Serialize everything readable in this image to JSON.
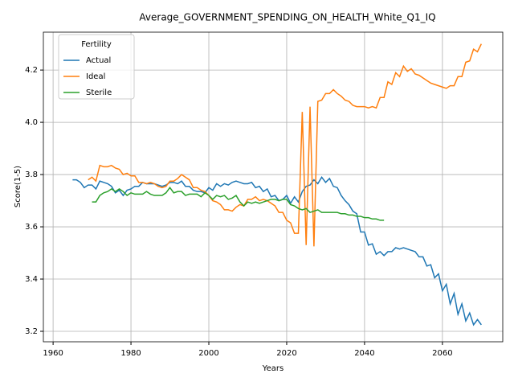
{
  "chart_data": {
    "type": "line",
    "title": "Average_GOVERNMENT_SPENDING_ON_HEALTH_White_Q1_IQ",
    "xlabel": "Years",
    "ylabel": "Score(1-5)",
    "x": [
      1965,
      1966,
      1967,
      1968,
      1969,
      1970,
      1971,
      1972,
      1973,
      1974,
      1975,
      1976,
      1977,
      1978,
      1979,
      1980,
      1981,
      1982,
      1983,
      1984,
      1985,
      1986,
      1987,
      1988,
      1989,
      1990,
      1991,
      1992,
      1993,
      1994,
      1995,
      1996,
      1997,
      1998,
      1999,
      2000,
      2001,
      2002,
      2003,
      2004,
      2005,
      2006,
      2007,
      2008,
      2009,
      2010,
      2011,
      2012,
      2013,
      2014,
      2015,
      2016,
      2017,
      2018,
      2019,
      2020,
      2021,
      2022,
      2023,
      2024,
      2025,
      2026,
      2027,
      2028,
      2029,
      2030,
      2031,
      2032,
      2033,
      2034,
      2035,
      2036,
      2037,
      2038,
      2039,
      2040,
      2041,
      2042,
      2043,
      2044,
      2045,
      2046,
      2047,
      2048,
      2049,
      2050,
      2051,
      2052,
      2053,
      2054,
      2055,
      2056,
      2057,
      2058,
      2059,
      2060,
      2061,
      2062,
      2063,
      2064,
      2065,
      2066,
      2067,
      2068,
      2069,
      2070
    ],
    "series": [
      {
        "name": "Actual",
        "color": "#1f77b4",
        "values": [
          3.78,
          3.78,
          3.77,
          3.75,
          3.76,
          3.76,
          3.745,
          3.775,
          3.77,
          3.765,
          3.755,
          3.73,
          3.74,
          3.72,
          3.74,
          3.745,
          3.755,
          3.755,
          3.77,
          3.765,
          3.765,
          3.765,
          3.76,
          3.755,
          3.76,
          3.77,
          3.77,
          3.765,
          3.775,
          3.755,
          3.755,
          3.74,
          3.735,
          3.735,
          3.73,
          3.75,
          3.74,
          3.765,
          3.755,
          3.765,
          3.76,
          3.77,
          3.775,
          3.77,
          3.765,
          3.765,
          3.77,
          3.75,
          3.755,
          3.735,
          3.745,
          3.715,
          3.72,
          3.7,
          3.705,
          3.72,
          3.69,
          3.715,
          3.695,
          3.735,
          3.755,
          3.76,
          3.78,
          3.765,
          3.79,
          3.77,
          3.785,
          3.755,
          3.75,
          3.72,
          3.7,
          3.685,
          3.66,
          3.65,
          3.58,
          3.58,
          3.53,
          3.535,
          3.495,
          3.505,
          3.49,
          3.505,
          3.505,
          3.52,
          3.515,
          3.52,
          3.515,
          3.51,
          3.505,
          3.485,
          3.485,
          3.45,
          3.455,
          3.405,
          3.42,
          3.355,
          3.38,
          3.305,
          3.345,
          3.265,
          3.305,
          3.24,
          3.27,
          3.225,
          3.245,
          3.225
        ]
      },
      {
        "name": "Ideal",
        "color": "#ff7f0e",
        "values": [
          null,
          null,
          null,
          null,
          3.78,
          3.79,
          3.775,
          3.835,
          3.83,
          3.83,
          3.835,
          3.825,
          3.82,
          3.8,
          3.805,
          3.795,
          3.795,
          3.77,
          3.77,
          3.765,
          3.77,
          3.765,
          3.755,
          3.75,
          3.755,
          3.775,
          3.775,
          3.785,
          3.8,
          3.79,
          3.78,
          3.75,
          3.75,
          3.74,
          3.735,
          3.72,
          3.7,
          3.695,
          3.685,
          3.665,
          3.665,
          3.66,
          3.675,
          3.685,
          3.68,
          3.705,
          3.705,
          3.715,
          3.7,
          3.705,
          3.7,
          3.69,
          3.68,
          3.655,
          3.655,
          3.625,
          3.615,
          3.575,
          3.575,
          4.04,
          3.53,
          4.06,
          3.525,
          4.08,
          4.085,
          4.11,
          4.11,
          4.125,
          4.11,
          4.1,
          4.085,
          4.08,
          4.065,
          4.06,
          4.06,
          4.06,
          4.055,
          4.06,
          4.055,
          4.095,
          4.095,
          4.155,
          4.145,
          4.19,
          4.175,
          4.215,
          4.195,
          4.205,
          4.185,
          4.18,
          4.17,
          4.16,
          4.15,
          4.145,
          4.14,
          4.135,
          4.13,
          4.14,
          4.14,
          4.175,
          4.175,
          4.23,
          4.235,
          4.28,
          4.27,
          4.3
        ]
      },
      {
        "name": "Sterile",
        "color": "#2ca02c",
        "values": [
          null,
          null,
          null,
          null,
          null,
          3.695,
          3.695,
          3.72,
          3.73,
          3.735,
          3.745,
          3.735,
          3.745,
          3.735,
          3.72,
          3.73,
          3.725,
          3.725,
          3.725,
          3.735,
          3.725,
          3.72,
          3.72,
          3.72,
          3.73,
          3.75,
          3.73,
          3.735,
          3.735,
          3.72,
          3.725,
          3.725,
          3.725,
          3.715,
          3.73,
          3.72,
          3.705,
          3.72,
          3.715,
          3.72,
          3.705,
          3.71,
          3.72,
          3.695,
          3.68,
          3.695,
          3.69,
          3.695,
          3.69,
          3.695,
          3.7,
          3.705,
          3.705,
          3.7,
          3.705,
          3.705,
          3.685,
          3.68,
          3.67,
          3.665,
          3.67,
          3.655,
          3.66,
          3.665,
          3.655,
          3.655,
          3.655,
          3.655,
          3.655,
          3.65,
          3.65,
          3.645,
          3.645,
          3.64,
          3.64,
          3.635,
          3.635,
          3.63,
          3.63,
          3.625,
          3.625,
          null,
          null,
          null,
          null,
          null,
          null,
          null,
          null,
          null,
          null,
          null,
          null,
          null,
          null,
          null,
          null,
          null,
          null,
          null,
          null,
          null,
          null,
          null,
          null,
          null
        ]
      }
    ],
    "xlim": [
      1957.5,
      2075.5
    ],
    "xticks": [
      1960,
      1980,
      2000,
      2020,
      2040,
      2060
    ],
    "ylim": [
      3.16,
      4.345
    ],
    "yticks": [
      3.2,
      3.4,
      3.6,
      3.8,
      {
        "value": 4,
        "label": "4.0"
      },
      4.2
    ],
    "grid": true,
    "legend_title": "Fertility",
    "legend_loc": "upper left"
  }
}
